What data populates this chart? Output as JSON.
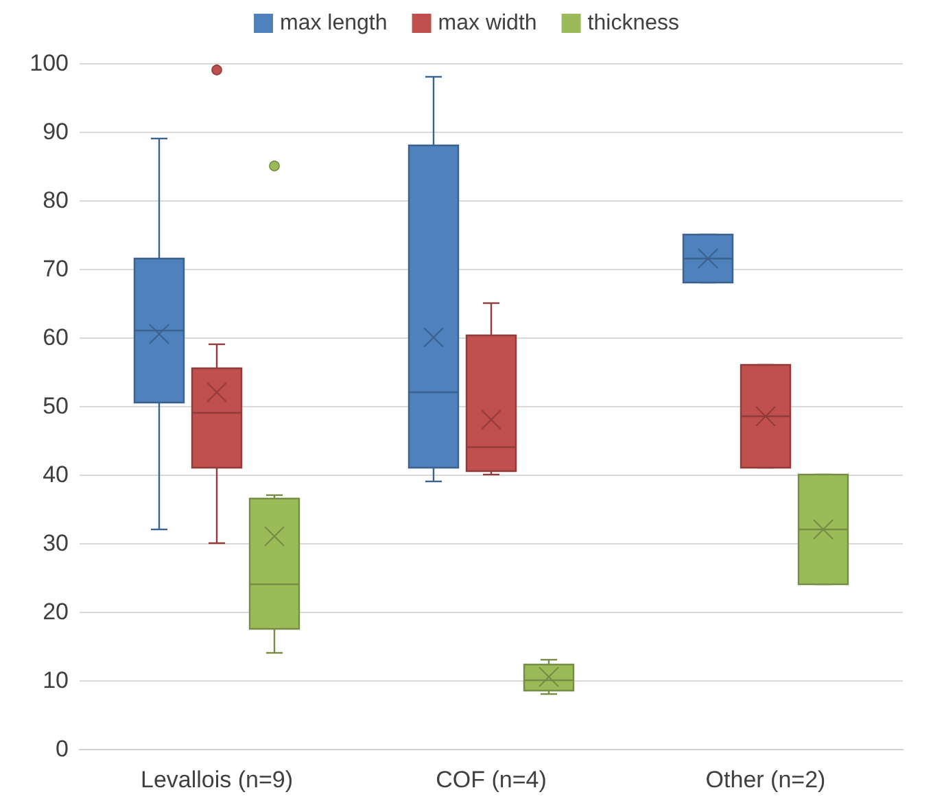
{
  "chart_data": {
    "type": "box",
    "categories": [
      "Levallois (n=9)",
      "COF (n=4)",
      "Other (n=2)"
    ],
    "series": [
      {
        "name": "max length",
        "color": "#4f81bd",
        "boxes": [
          {
            "low": 32,
            "q1": 50.5,
            "median": 61,
            "q3": 71.5,
            "high": 89,
            "mean": 60.5
          },
          {
            "low": 39,
            "q1": 41,
            "median": 52,
            "q3": 88,
            "high": 98,
            "mean": 60
          },
          {
            "low": 68,
            "q1": 68,
            "median": 71.5,
            "q3": 75,
            "high": 75,
            "mean": 71.5
          }
        ]
      },
      {
        "name": "max width",
        "color": "#c0504d",
        "boxes": [
          {
            "low": 30,
            "q1": 41,
            "median": 49,
            "q3": 55.5,
            "high": 59,
            "mean": 52,
            "outliers": [
              99
            ]
          },
          {
            "low": 40,
            "q1": 40.5,
            "median": 44,
            "q3": 60.3,
            "high": 65,
            "mean": 48
          },
          {
            "low": 41,
            "q1": 41,
            "median": 48.5,
            "q3": 56,
            "high": 56,
            "mean": 48.5
          }
        ]
      },
      {
        "name": "thickness",
        "color": "#9bbb59",
        "boxes": [
          {
            "low": 14,
            "q1": 17.5,
            "median": 24,
            "q3": 36.5,
            "high": 37,
            "mean": 31,
            "outliers": [
              85
            ]
          },
          {
            "low": 8,
            "q1": 8.5,
            "median": 10,
            "q3": 12.3,
            "high": 13,
            "mean": 10.5
          },
          {
            "low": 24,
            "q1": 24,
            "median": 32,
            "q3": 40,
            "high": 40,
            "mean": 32
          }
        ]
      }
    ],
    "ylim": [
      0,
      100
    ],
    "yticks": [
      0,
      10,
      20,
      30,
      40,
      50,
      60,
      70,
      80,
      90,
      100
    ],
    "grid": "y",
    "legend": "top"
  }
}
